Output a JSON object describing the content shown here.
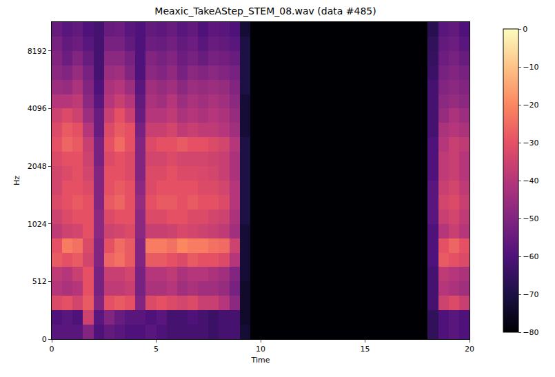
{
  "chart_data": {
    "type": "heatmap",
    "title": "Meaxic_TakeAStep_STEM_08.wav (data #485)",
    "x_label": "Time",
    "y_label": "Hz",
    "color": "magma",
    "time_bins": [
      0,
      0.5,
      1,
      1.5,
      2,
      2.5,
      3,
      3.5,
      4,
      4.5,
      5,
      5.5,
      6,
      6.5,
      7,
      7.5,
      8,
      8.5,
      9,
      9.5,
      10,
      10.5,
      11,
      11.5,
      12,
      12.5,
      13,
      13.5,
      14,
      14.5,
      15,
      15.5,
      16,
      16.5,
      17,
      17.5,
      18,
      18.5,
      19,
      19.5,
      20
    ],
    "freq_bins": [
      0,
      128,
      256,
      384,
      512,
      609,
      724,
      861,
      1024,
      1218,
      1448,
      1722,
      2048,
      2435,
      2896,
      3444,
      4096,
      4871,
      5793,
      6889,
      8192,
      9742,
      11025
    ],
    "xlim": [
      0,
      20
    ],
    "xticks": [
      0,
      5,
      10,
      15,
      20
    ],
    "ylim": [
      0,
      11025
    ],
    "yticks": [
      0,
      512,
      1024,
      2048,
      4096,
      8192
    ],
    "zlim": [
      -80,
      0
    ],
    "zticks": [
      -80,
      -70,
      -60,
      -50,
      -40,
      -30,
      -20,
      -10,
      0
    ],
    "z": [
      [
        -58,
        -58,
        -58,
        -50,
        -60,
        -56,
        -58,
        -60,
        -60,
        -58,
        -60,
        -62,
        -62,
        -62,
        -62,
        -64,
        -62,
        -62,
        -72,
        -80,
        -80,
        -80,
        -80,
        -80,
        -80,
        -80,
        -80,
        -80,
        -80,
        -80,
        -80,
        -80,
        -80,
        -80,
        -80,
        -80,
        -66,
        -60,
        -58,
        -60
      ],
      [
        -60,
        -58,
        -60,
        -35,
        -58,
        -50,
        -55,
        -58,
        -58,
        -60,
        -58,
        -62,
        -62,
        -60,
        -62,
        -64,
        -62,
        -62,
        -74,
        -80,
        -80,
        -80,
        -80,
        -80,
        -80,
        -80,
        -80,
        -80,
        -80,
        -80,
        -80,
        -80,
        -80,
        -80,
        -80,
        -80,
        -66,
        -60,
        -58,
        -60
      ],
      [
        -32,
        -30,
        -34,
        -28,
        -50,
        -30,
        -28,
        -30,
        -50,
        -32,
        -30,
        -32,
        -34,
        -32,
        -36,
        -36,
        -40,
        -48,
        -74,
        -80,
        -80,
        -80,
        -80,
        -80,
        -80,
        -80,
        -80,
        -80,
        -80,
        -80,
        -80,
        -80,
        -80,
        -80,
        -80,
        -80,
        -62,
        -35,
        -32,
        -36
      ],
      [
        -40,
        -42,
        -40,
        -30,
        -52,
        -38,
        -38,
        -36,
        -52,
        -42,
        -42,
        -40,
        -44,
        -42,
        -44,
        -44,
        -46,
        -52,
        -74,
        -80,
        -80,
        -80,
        -80,
        -80,
        -80,
        -80,
        -80,
        -80,
        -80,
        -80,
        -80,
        -80,
        -80,
        -80,
        -80,
        -80,
        -62,
        -40,
        -42,
        -44
      ],
      [
        -38,
        -40,
        -36,
        -30,
        -52,
        -36,
        -36,
        -34,
        -52,
        -40,
        -40,
        -38,
        -42,
        -40,
        -40,
        -42,
        -44,
        -50,
        -72,
        -80,
        -80,
        -80,
        -80,
        -80,
        -80,
        -80,
        -80,
        -80,
        -80,
        -80,
        -80,
        -80,
        -80,
        -80,
        -80,
        -80,
        -62,
        -38,
        -40,
        -42
      ],
      [
        -28,
        -30,
        -28,
        -34,
        -50,
        -26,
        -24,
        -28,
        -50,
        -28,
        -28,
        -30,
        -32,
        -28,
        -30,
        -30,
        -32,
        -40,
        -72,
        -80,
        -80,
        -80,
        -80,
        -80,
        -80,
        -80,
        -80,
        -80,
        -80,
        -80,
        -80,
        -80,
        -80,
        -80,
        -80,
        -80,
        -60,
        -28,
        -30,
        -32
      ],
      [
        -30,
        -22,
        -24,
        -32,
        -50,
        -30,
        -25,
        -28,
        -50,
        -22,
        -22,
        -24,
        -20,
        -22,
        -22,
        -24,
        -25,
        -35,
        -72,
        -80,
        -80,
        -80,
        -80,
        -80,
        -80,
        -80,
        -80,
        -80,
        -80,
        -80,
        -80,
        -80,
        -80,
        -80,
        -80,
        -80,
        -60,
        -30,
        -26,
        -30
      ],
      [
        -38,
        -35,
        -34,
        -30,
        -48,
        -35,
        -34,
        -32,
        -48,
        -36,
        -36,
        -35,
        -33,
        -34,
        -35,
        -36,
        -38,
        -44,
        -72,
        -80,
        -80,
        -80,
        -80,
        -80,
        -80,
        -80,
        -80,
        -80,
        -80,
        -80,
        -80,
        -80,
        -80,
        -80,
        -80,
        -80,
        -60,
        -40,
        -36,
        -40
      ],
      [
        -35,
        -32,
        -30,
        -30,
        -48,
        -32,
        -30,
        -30,
        -48,
        -32,
        -32,
        -30,
        -30,
        -32,
        -32,
        -34,
        -35,
        -42,
        -70,
        -80,
        -80,
        -80,
        -80,
        -80,
        -80,
        -80,
        -80,
        -80,
        -80,
        -80,
        -80,
        -80,
        -80,
        -80,
        -80,
        -80,
        -58,
        -36,
        -34,
        -38
      ],
      [
        -32,
        -30,
        -28,
        -30,
        -50,
        -28,
        -26,
        -30,
        -46,
        -30,
        -28,
        -28,
        -30,
        -28,
        -30,
        -30,
        -32,
        -40,
        -70,
        -80,
        -80,
        -80,
        -80,
        -80,
        -80,
        -80,
        -80,
        -80,
        -80,
        -80,
        -80,
        -80,
        -80,
        -80,
        -80,
        -80,
        -58,
        -34,
        -32,
        -36
      ],
      [
        -34,
        -30,
        -30,
        -32,
        -50,
        -30,
        -28,
        -30,
        -48,
        -32,
        -30,
        -30,
        -30,
        -30,
        -32,
        -32,
        -34,
        -40,
        -70,
        -80,
        -80,
        -80,
        -80,
        -80,
        -80,
        -80,
        -80,
        -80,
        -80,
        -80,
        -80,
        -80,
        -80,
        -80,
        -80,
        -80,
        -58,
        -36,
        -34,
        -38
      ],
      [
        -34,
        -32,
        -30,
        -34,
        -50,
        -30,
        -30,
        -32,
        -50,
        -32,
        -32,
        -30,
        -32,
        -32,
        -33,
        -34,
        -36,
        -42,
        -70,
        -80,
        -80,
        -80,
        -80,
        -80,
        -80,
        -80,
        -80,
        -80,
        -80,
        -80,
        -80,
        -80,
        -80,
        -80,
        -80,
        -80,
        -60,
        -38,
        -36,
        -40
      ],
      [
        -32,
        -30,
        -30,
        -35,
        -52,
        -32,
        -30,
        -32,
        -50,
        -34,
        -34,
        -32,
        -34,
        -34,
        -34,
        -35,
        -36,
        -42,
        -70,
        -80,
        -80,
        -80,
        -80,
        -80,
        -80,
        -80,
        -80,
        -80,
        -80,
        -80,
        -80,
        -80,
        -80,
        -80,
        -80,
        -80,
        -60,
        -38,
        -36,
        -40
      ],
      [
        -30,
        -26,
        -28,
        -36,
        -52,
        -30,
        -25,
        -30,
        -50,
        -32,
        -30,
        -30,
        -28,
        -30,
        -30,
        -32,
        -34,
        -40,
        -70,
        -80,
        -80,
        -80,
        -80,
        -80,
        -80,
        -80,
        -80,
        -80,
        -80,
        -80,
        -80,
        -80,
        -80,
        -80,
        -80,
        -80,
        -60,
        -40,
        -36,
        -38
      ],
      [
        -32,
        -28,
        -30,
        -40,
        -55,
        -32,
        -28,
        -30,
        -52,
        -36,
        -36,
        -34,
        -38,
        -36,
        -38,
        -38,
        -40,
        -44,
        -72,
        -80,
        -80,
        -80,
        -80,
        -80,
        -80,
        -80,
        -80,
        -80,
        -80,
        -80,
        -80,
        -80,
        -80,
        -80,
        -80,
        -80,
        -62,
        -42,
        -40,
        -42
      ],
      [
        -35,
        -32,
        -35,
        -45,
        -55,
        -36,
        -30,
        -36,
        -55,
        -40,
        -40,
        -38,
        -42,
        -40,
        -42,
        -40,
        -42,
        -46,
        -72,
        -80,
        -80,
        -80,
        -80,
        -80,
        -80,
        -80,
        -80,
        -80,
        -80,
        -80,
        -80,
        -80,
        -80,
        -80,
        -80,
        -80,
        -62,
        -46,
        -42,
        -45
      ],
      [
        -40,
        -40,
        -38,
        -48,
        -58,
        -40,
        -36,
        -40,
        -56,
        -42,
        -44,
        -40,
        -45,
        -42,
        -44,
        -42,
        -44,
        -48,
        -72,
        -80,
        -80,
        -80,
        -80,
        -80,
        -80,
        -80,
        -80,
        -80,
        -80,
        -80,
        -80,
        -80,
        -80,
        -80,
        -80,
        -80,
        -62,
        -48,
        -46,
        -48
      ],
      [
        -45,
        -46,
        -42,
        -50,
        -60,
        -42,
        -40,
        -45,
        -58,
        -44,
        -46,
        -44,
        -48,
        -45,
        -46,
        -45,
        -46,
        -50,
        -70,
        -80,
        -80,
        -80,
        -80,
        -80,
        -80,
        -80,
        -80,
        -80,
        -80,
        -80,
        -80,
        -80,
        -80,
        -80,
        -80,
        -80,
        -62,
        -50,
        -48,
        -50
      ],
      [
        -48,
        -50,
        -46,
        -52,
        -62,
        -45,
        -44,
        -50,
        -60,
        -48,
        -50,
        -47,
        -52,
        -48,
        -50,
        -48,
        -50,
        -52,
        -70,
        -80,
        -80,
        -80,
        -80,
        -80,
        -80,
        -80,
        -80,
        -80,
        -80,
        -80,
        -80,
        -80,
        -80,
        -80,
        -80,
        -80,
        -64,
        -52,
        -50,
        -52
      ],
      [
        -50,
        -54,
        -50,
        -55,
        -62,
        -48,
        -48,
        -52,
        -60,
        -50,
        -52,
        -50,
        -54,
        -52,
        -55,
        -52,
        -53,
        -55,
        -70,
        -80,
        -80,
        -80,
        -80,
        -80,
        -80,
        -80,
        -80,
        -80,
        -80,
        -80,
        -80,
        -80,
        -80,
        -80,
        -80,
        -80,
        -65,
        -54,
        -52,
        -55
      ],
      [
        -52,
        -56,
        -54,
        -58,
        -62,
        -52,
        -52,
        -56,
        -60,
        -54,
        -55,
        -53,
        -56,
        -54,
        -58,
        -55,
        -56,
        -58,
        -70,
        -80,
        -80,
        -80,
        -80,
        -80,
        -80,
        -80,
        -80,
        -80,
        -80,
        -80,
        -80,
        -80,
        -80,
        -80,
        -80,
        -80,
        -66,
        -56,
        -54,
        -58
      ],
      [
        -55,
        -58,
        -56,
        -60,
        -62,
        -55,
        -54,
        -58,
        -60,
        -56,
        -57,
        -55,
        -58,
        -56,
        -60,
        -57,
        -58,
        -60,
        -72,
        -80,
        -80,
        -80,
        -80,
        -80,
        -80,
        -80,
        -80,
        -80,
        -80,
        -80,
        -80,
        -80,
        -80,
        -80,
        -80,
        -80,
        -68,
        -58,
        -56,
        -60
      ]
    ]
  }
}
